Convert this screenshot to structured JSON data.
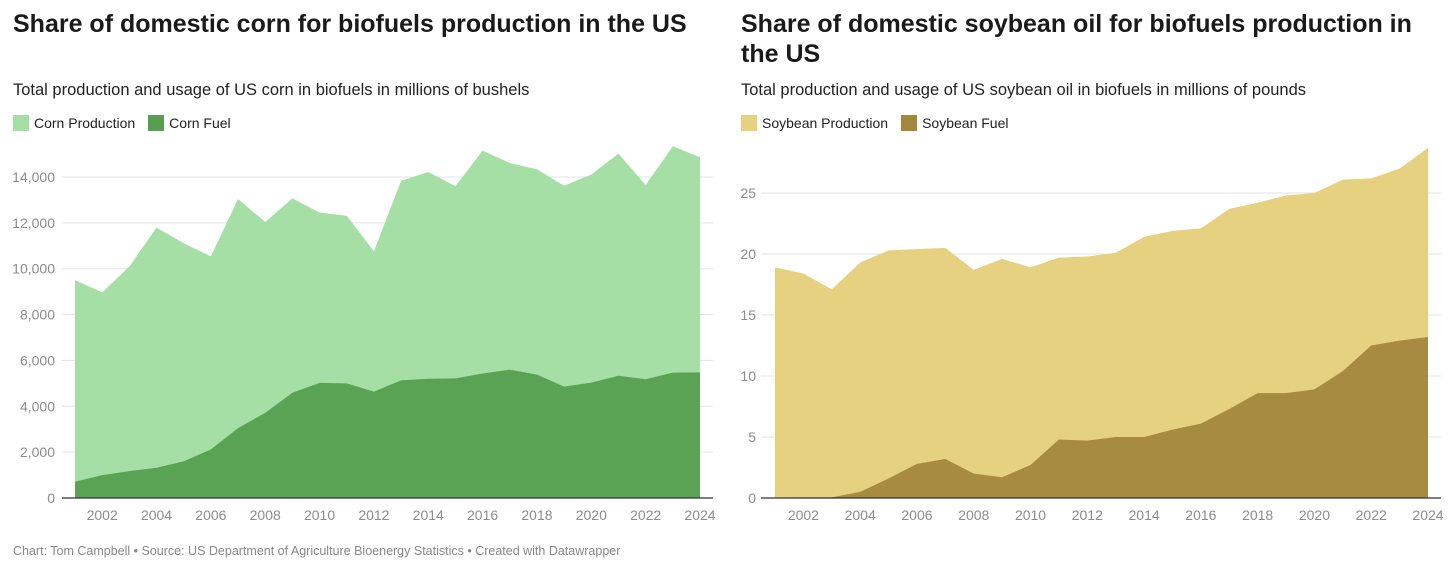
{
  "footer": "Chart: Tom Campbell • Source: US Department of Agriculture Bioenergy Statistics • Created with Datawrapper",
  "chart_data": [
    {
      "type": "area",
      "title": "Share of domestic corn for biofuels production in the US",
      "subtitle": "Total production and usage of US corn in biofuels in millions of bushels",
      "legend": [
        "Corn Production",
        "Corn Fuel"
      ],
      "x": [
        2001,
        2002,
        2003,
        2004,
        2005,
        2006,
        2007,
        2008,
        2009,
        2010,
        2011,
        2012,
        2013,
        2014,
        2015,
        2016,
        2017,
        2018,
        2019,
        2020,
        2021,
        2022,
        2023,
        2024
      ],
      "series": [
        {
          "name": "Corn Production",
          "color": "#a5dfa5",
          "values": [
            9500,
            8970,
            10090,
            11800,
            11110,
            10540,
            13040,
            12040,
            13070,
            12450,
            12310,
            10760,
            13830,
            14220,
            13600,
            15150,
            14610,
            14340,
            13620,
            14110,
            15020,
            13650,
            15340,
            14860
          ]
        },
        {
          "name": "Corn Fuel",
          "color": "#559f4f",
          "values": [
            710,
            1000,
            1170,
            1320,
            1600,
            2120,
            3050,
            3710,
            4590,
            5020,
            5000,
            4640,
            5130,
            5200,
            5220,
            5430,
            5600,
            5380,
            4860,
            5030,
            5330,
            5180,
            5470,
            5480
          ]
        }
      ],
      "xticks": [
        "2002",
        "2004",
        "2006",
        "2008",
        "2010",
        "2012",
        "2014",
        "2016",
        "2018",
        "2020",
        "2022",
        "2024"
      ],
      "yticks": [
        "0",
        "2,000",
        "4,000",
        "6,000",
        "8,000",
        "10,000",
        "12,000",
        "14,000"
      ],
      "xlim": [
        2001,
        2024
      ],
      "ylim": [
        0,
        15000
      ]
    },
    {
      "type": "area",
      "title": "Share of domestic soybean oil for biofuels production in the US",
      "subtitle": "Total production and usage of US soybean oil in biofuels in millions of pounds",
      "legend": [
        "Soybean Production",
        "Soybean Fuel"
      ],
      "x": [
        2001,
        2002,
        2003,
        2004,
        2005,
        2006,
        2007,
        2008,
        2009,
        2010,
        2011,
        2012,
        2013,
        2014,
        2015,
        2016,
        2017,
        2018,
        2019,
        2020,
        2021,
        2022,
        2023,
        2024
      ],
      "series": [
        {
          "name": "Soybean Production",
          "color": "#e5d17f",
          "values": [
            18.9,
            18.4,
            17.1,
            19.3,
            20.3,
            20.4,
            20.5,
            18.7,
            19.6,
            18.9,
            19.7,
            19.8,
            20.1,
            21.4,
            21.9,
            22.1,
            23.7,
            24.2,
            24.8,
            25.0,
            26.1,
            26.2,
            27.0,
            28.7
          ]
        },
        {
          "name": "Soybean Fuel",
          "color": "#a2873d",
          "values": [
            0.02,
            0.05,
            0.05,
            0.5,
            1.6,
            2.8,
            3.2,
            2.0,
            1.7,
            2.7,
            4.8,
            4.7,
            5.0,
            5.0,
            5.6,
            6.1,
            7.3,
            8.6,
            8.6,
            8.9,
            10.4,
            12.5,
            12.9,
            13.2
          ]
        }
      ],
      "xticks": [
        "2002",
        "2004",
        "2006",
        "2008",
        "2010",
        "2012",
        "2014",
        "2016",
        "2018",
        "2020",
        "2022",
        "2024"
      ],
      "yticks": [
        "0",
        "5",
        "10",
        "15",
        "20",
        "25"
      ],
      "xlim": [
        2001,
        2024
      ],
      "ylim": [
        0,
        29
      ]
    }
  ]
}
